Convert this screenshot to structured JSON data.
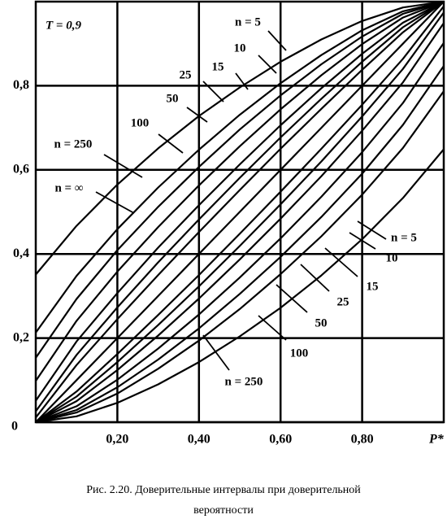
{
  "chart_data": {
    "type": "line",
    "color": "#000000",
    "x": [
      0,
      0.1,
      0.2,
      0.3,
      0.4,
      0.5,
      0.6,
      0.7,
      0.8,
      0.9,
      1
    ],
    "series": [
      {
        "values": [
          0,
          0.014,
          0.046,
          0.09,
          0.143,
          0.204,
          0.272,
          0.349,
          0.435,
          0.533,
          0.649
        ]
      },
      {
        "values": [
          0.351,
          0.467,
          0.565,
          0.651,
          0.728,
          0.796,
          0.857,
          0.91,
          0.954,
          0.986,
          1
        ]
      },
      {
        "values": [
          0,
          0.023,
          0.068,
          0.127,
          0.194,
          0.269,
          0.352,
          0.442,
          0.541,
          0.652,
          0.787
        ]
      },
      {
        "values": [
          0.213,
          0.348,
          0.459,
          0.558,
          0.648,
          0.731,
          0.806,
          0.873,
          0.932,
          0.977,
          1
        ]
      },
      {
        "values": [
          0,
          0.029,
          0.083,
          0.149,
          0.223,
          0.305,
          0.393,
          0.488,
          0.591,
          0.707,
          0.847
        ]
      },
      {
        "values": [
          0.153,
          0.293,
          0.409,
          0.512,
          0.607,
          0.696,
          0.777,
          0.851,
          0.917,
          0.971,
          1
        ]
      },
      {
        "values": [
          0,
          0.038,
          0.101,
          0.175,
          0.256,
          0.344,
          0.437,
          0.536,
          0.642,
          0.759,
          0.902
        ]
      },
      {
        "values": [
          0.098,
          0.241,
          0.358,
          0.464,
          0.563,
          0.656,
          0.744,
          0.825,
          0.899,
          0.962,
          1
        ]
      },
      {
        "values": [
          0,
          0.05,
          0.124,
          0.206,
          0.294,
          0.387,
          0.484,
          0.585,
          0.693,
          0.808,
          0.949
        ]
      },
      {
        "values": [
          0.051,
          0.192,
          0.307,
          0.415,
          0.516,
          0.613,
          0.706,
          0.794,
          0.876,
          0.95,
          1
        ]
      },
      {
        "values": [
          0,
          0.061,
          0.143,
          0.231,
          0.323,
          0.419,
          0.518,
          0.62,
          0.727,
          0.84,
          0.974
        ]
      },
      {
        "values": [
          0.026,
          0.16,
          0.273,
          0.38,
          0.482,
          0.581,
          0.677,
          0.769,
          0.857,
          0.939,
          1
        ]
      },
      {
        "values": [
          0,
          0.073,
          0.162,
          0.255,
          0.35,
          0.448,
          0.548,
          0.65,
          0.755,
          0.864,
          0.989
        ]
      },
      {
        "values": [
          0.011,
          0.136,
          0.245,
          0.35,
          0.452,
          0.552,
          0.65,
          0.745,
          0.838,
          0.927,
          1
        ]
      },
      {
        "values": [
          0,
          0.1,
          0.2,
          0.3,
          0.4,
          0.5,
          0.6,
          0.7,
          0.8,
          0.9,
          1
        ]
      }
    ],
    "xlim": [
      0,
      1
    ],
    "ylim": [
      0,
      1
    ],
    "xticks": [
      {
        "value": 0.2,
        "label": "0,20"
      },
      {
        "value": 0.4,
        "label": "0,40"
      },
      {
        "value": 0.6,
        "label": "0,60"
      },
      {
        "value": 0.8,
        "label": "0,80"
      }
    ],
    "yticks": [
      0,
      {
        "value": 0.2,
        "label": "0,2"
      },
      {
        "value": 0.4,
        "label": "0,4"
      },
      {
        "value": 0.6,
        "label": "0,6"
      },
      {
        "value": 0.8,
        "label": "0,8"
      }
    ],
    "grid": true,
    "x_label": "P*",
    "annotations": [
      "T = 0,9",
      "n = 5",
      "10",
      "15",
      "25",
      "50",
      "100",
      "n = 250",
      "n = ∞",
      "n = 5",
      "10",
      "15",
      "25",
      "50",
      "100",
      "n = 250"
    ],
    "caption": [
      "Рис. 2.20. Доверительные интервалы при доверительной",
      "вероятности"
    ]
  }
}
